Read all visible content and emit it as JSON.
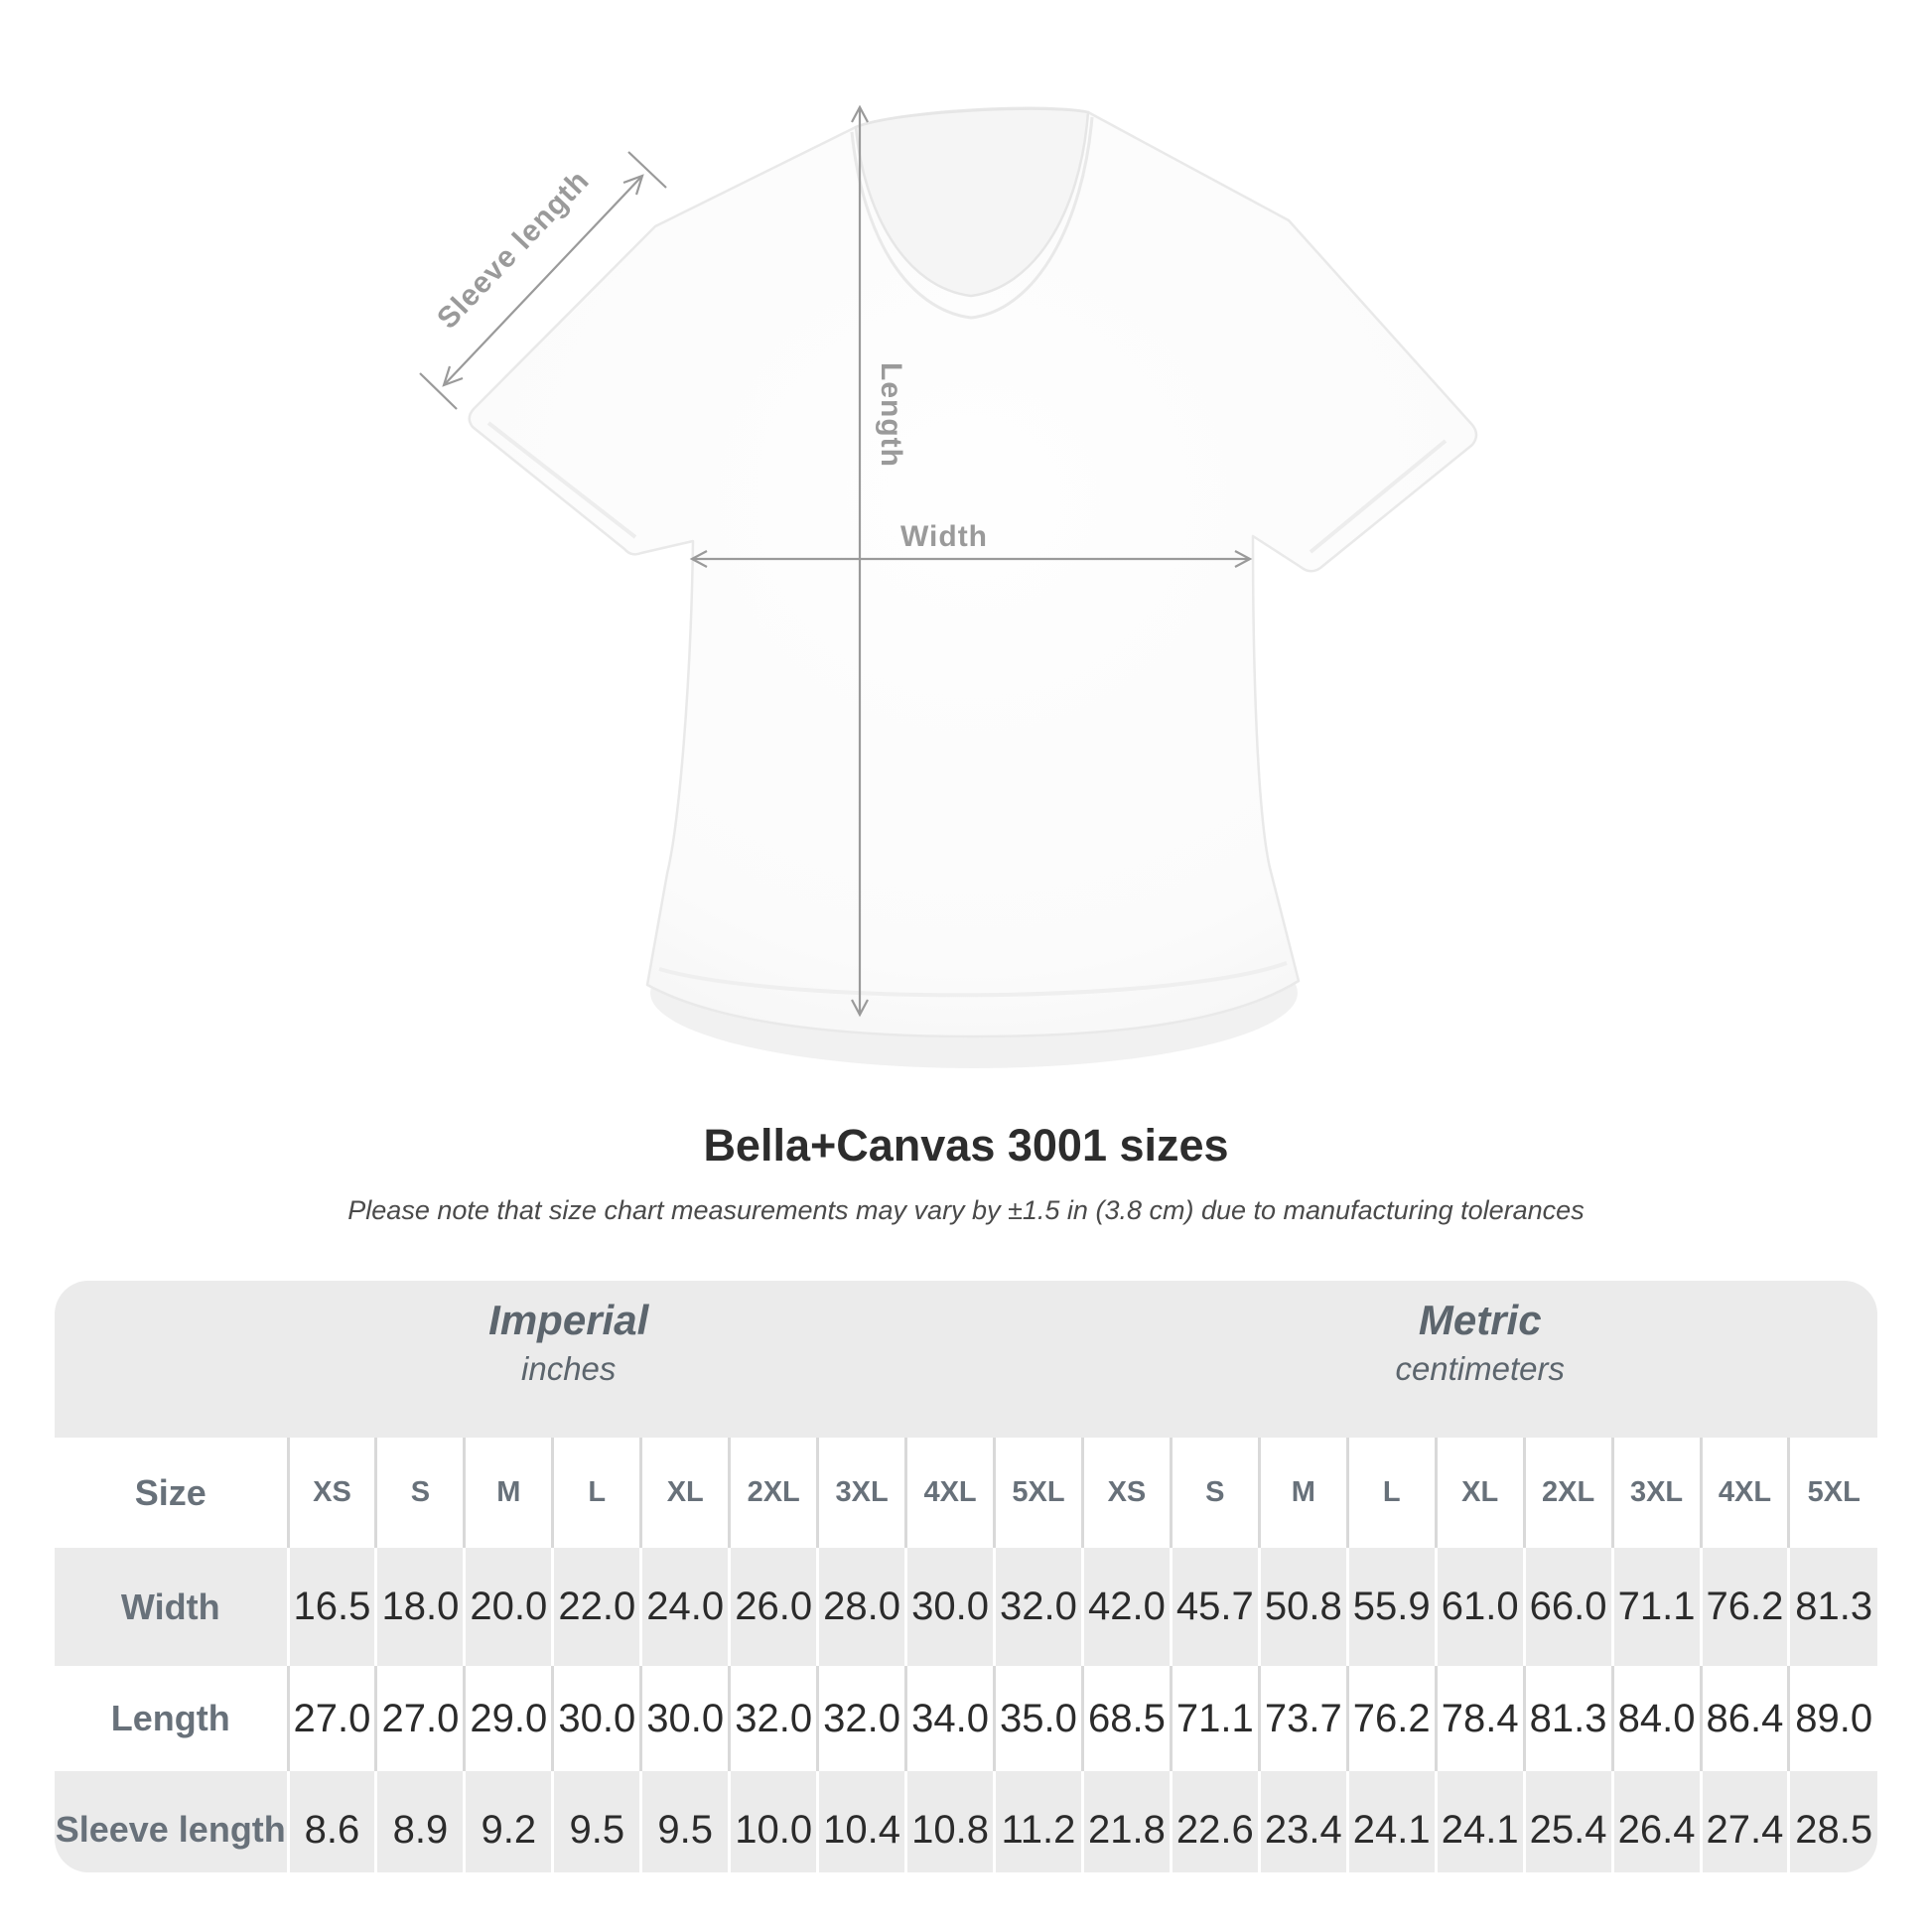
{
  "title": "Bella+Canvas 3001 sizes",
  "subtitle": "Please note that size chart measurements may vary by ±1.5 in (3.8 cm) due to manufacturing tolerances",
  "diagram": {
    "labels": {
      "sleeve_length": "Sleeve length",
      "length": "Length",
      "width": "Width"
    }
  },
  "table": {
    "size_header": "Size",
    "groups": [
      {
        "label": "Imperial",
        "sublabel": "inches"
      },
      {
        "label": "Metric",
        "sublabel": "centimeters"
      }
    ],
    "sizes": [
      "XS",
      "S",
      "M",
      "L",
      "XL",
      "2XL",
      "3XL",
      "4XL",
      "5XL"
    ],
    "rows": [
      {
        "label": "Width",
        "imperial": [
          "16.5",
          "18.0",
          "20.0",
          "22.0",
          "24.0",
          "26.0",
          "28.0",
          "30.0",
          "32.0"
        ],
        "metric": [
          "42.0",
          "45.7",
          "50.8",
          "55.9",
          "61.0",
          "66.0",
          "71.1",
          "76.2",
          "81.3"
        ]
      },
      {
        "label": "Length",
        "imperial": [
          "27.0",
          "27.0",
          "29.0",
          "30.0",
          "30.0",
          "32.0",
          "32.0",
          "34.0",
          "35.0"
        ],
        "metric": [
          "68.5",
          "71.1",
          "73.7",
          "76.2",
          "78.4",
          "81.3",
          "84.0",
          "86.4",
          "89.0"
        ]
      },
      {
        "label": "Sleeve length",
        "imperial": [
          "8.6",
          "8.9",
          "9.2",
          "9.5",
          "9.5",
          "10.0",
          "10.4",
          "10.8",
          "11.2"
        ],
        "metric": [
          "21.8",
          "22.6",
          "23.4",
          "24.1",
          "24.1",
          "25.4",
          "26.4",
          "27.4",
          "28.5"
        ]
      }
    ]
  },
  "colors": {
    "table_band_gray": "#ebebeb",
    "separator_on_white": "#d9d9d9",
    "separator_on_gray": "#ffffff",
    "header_text": "#68717a",
    "group_header_text": "#5c656d",
    "value_text": "#2b2b2b",
    "title_text": "#2d2d2d",
    "annotation_gray": "#9a9a9a"
  },
  "chart_data": {
    "type": "table",
    "title": "Bella+Canvas 3001 sizes",
    "note": "Please note that size chart measurements may vary by ±1.5 in (3.8 cm) due to manufacturing tolerances",
    "columns": [
      "XS",
      "S",
      "M",
      "L",
      "XL",
      "2XL",
      "3XL",
      "4XL",
      "5XL"
    ],
    "units": {
      "imperial": "inches",
      "metric": "centimeters"
    },
    "series": [
      {
        "name": "Width (in)",
        "values": [
          16.5,
          18.0,
          20.0,
          22.0,
          24.0,
          26.0,
          28.0,
          30.0,
          32.0
        ]
      },
      {
        "name": "Length (in)",
        "values": [
          27.0,
          27.0,
          29.0,
          30.0,
          30.0,
          32.0,
          32.0,
          34.0,
          35.0
        ]
      },
      {
        "name": "Sleeve length (in)",
        "values": [
          8.6,
          8.9,
          9.2,
          9.5,
          9.5,
          10.0,
          10.4,
          10.8,
          11.2
        ]
      },
      {
        "name": "Width (cm)",
        "values": [
          42.0,
          45.7,
          50.8,
          55.9,
          61.0,
          66.0,
          71.1,
          76.2,
          81.3
        ]
      },
      {
        "name": "Length (cm)",
        "values": [
          68.5,
          71.1,
          73.7,
          76.2,
          78.4,
          81.3,
          84.0,
          86.4,
          89.0
        ]
      },
      {
        "name": "Sleeve length (cm)",
        "values": [
          21.8,
          22.6,
          23.4,
          24.1,
          24.1,
          25.4,
          26.4,
          27.4,
          28.5
        ]
      }
    ]
  }
}
